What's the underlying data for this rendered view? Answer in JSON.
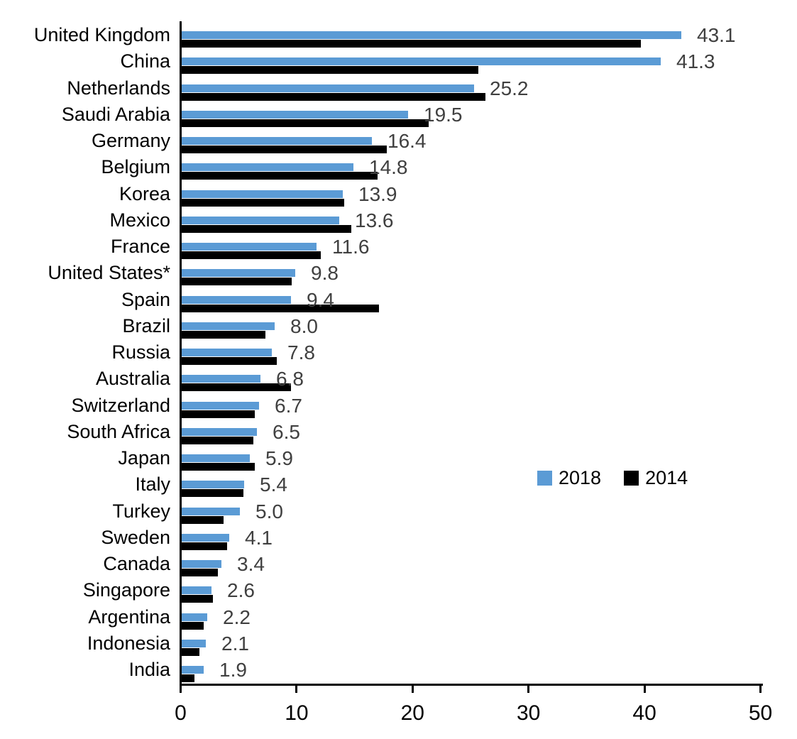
{
  "chart_data": {
    "type": "bar",
    "orientation": "horizontal",
    "title": "",
    "xlabel": "",
    "ylabel": "",
    "xlim": [
      0,
      50
    ],
    "xticks": [
      "0",
      "10",
      "20",
      "30",
      "40",
      "50"
    ],
    "grid": false,
    "legend_position": "middle-right",
    "categories": [
      "United Kingdom",
      "China",
      "Netherlands",
      "Saudi Arabia",
      "Germany",
      "Belgium",
      "Korea",
      "Mexico",
      "France",
      "United States*",
      "Spain",
      "Brazil",
      "Russia",
      "Australia",
      "Switzerland",
      "South Africa",
      "Japan",
      "Italy",
      "Turkey",
      "Sweden",
      "Canada",
      "Singapore",
      "Argentina",
      "Indonesia",
      "India"
    ],
    "series": [
      {
        "name": "2018",
        "color": "#5B9BD5",
        "values": [
          43.1,
          41.3,
          25.2,
          19.5,
          16.4,
          14.8,
          13.9,
          13.6,
          11.6,
          9.8,
          9.4,
          8.0,
          7.8,
          6.8,
          6.7,
          6.5,
          5.9,
          5.4,
          5.0,
          4.1,
          3.4,
          2.6,
          2.2,
          2.1,
          1.9
        ]
      },
      {
        "name": "2014",
        "color": "#000000",
        "values": [
          39.6,
          25.6,
          26.2,
          21.3,
          17.7,
          16.9,
          14.0,
          14.6,
          12.0,
          9.5,
          17.0,
          7.2,
          8.2,
          9.4,
          6.3,
          6.2,
          6.3,
          5.3,
          3.6,
          3.9,
          3.1,
          2.7,
          1.9,
          1.5,
          1.1
        ]
      }
    ],
    "data_labels": {
      "series": "2018",
      "color": "#404040",
      "values": [
        "43.1",
        "41.3",
        "25.2",
        "19.5",
        "16.4",
        "14.8",
        "13.9",
        "13.6",
        "11.6",
        "9.8",
        "9.4",
        "8.0",
        "7.8",
        "6.8",
        "6.7",
        "6.5",
        "5.9",
        "5.4",
        "5.0",
        "4.1",
        "3.4",
        "2.6",
        "2.2",
        "2.1",
        "1.9"
      ]
    },
    "axis_color": "#000000"
  }
}
